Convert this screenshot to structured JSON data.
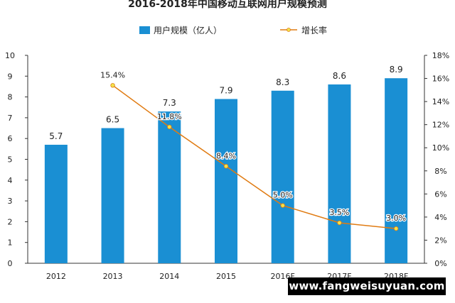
{
  "chart_data": {
    "type": "bar+line",
    "title": "2016-2018年中国移动互联网用户规模预测",
    "categories": [
      "2012",
      "2013",
      "2014",
      "2015",
      "2016F",
      "2017F",
      "2018F"
    ],
    "series": [
      {
        "name": "用户规模（亿人）",
        "kind": "bar",
        "axis": "left",
        "color": "#1a8fd3",
        "values": [
          5.7,
          6.5,
          7.3,
          7.9,
          8.3,
          8.6,
          8.9
        ],
        "labels": [
          "5.7",
          "6.5",
          "7.3",
          "7.9",
          "8.3",
          "8.6",
          "8.9"
        ]
      },
      {
        "name": "增长率",
        "kind": "line",
        "axis": "right",
        "color": "#e07b12",
        "marker_color": "#f2e24a",
        "values": [
          null,
          15.4,
          11.8,
          8.4,
          5.0,
          3.5,
          3.0
        ],
        "labels": [
          "",
          "15.4%",
          "11.8%",
          "8.4%",
          "5.0%",
          "3.5%",
          "3.0%"
        ]
      }
    ],
    "y_left": {
      "min": 0,
      "max": 10,
      "ticks": [
        "0",
        "1",
        "2",
        "3",
        "4",
        "5",
        "6",
        "7",
        "8",
        "9",
        "10"
      ]
    },
    "y_right": {
      "min": 0,
      "max": 18,
      "ticks": [
        "0%",
        "2%",
        "4%",
        "6%",
        "8%",
        "10%",
        "12%",
        "14%",
        "16%",
        "18%"
      ]
    },
    "grid": false,
    "legend_position": "top-center"
  },
  "watermark": {
    "url": "www.fangweisuyuan.com"
  }
}
